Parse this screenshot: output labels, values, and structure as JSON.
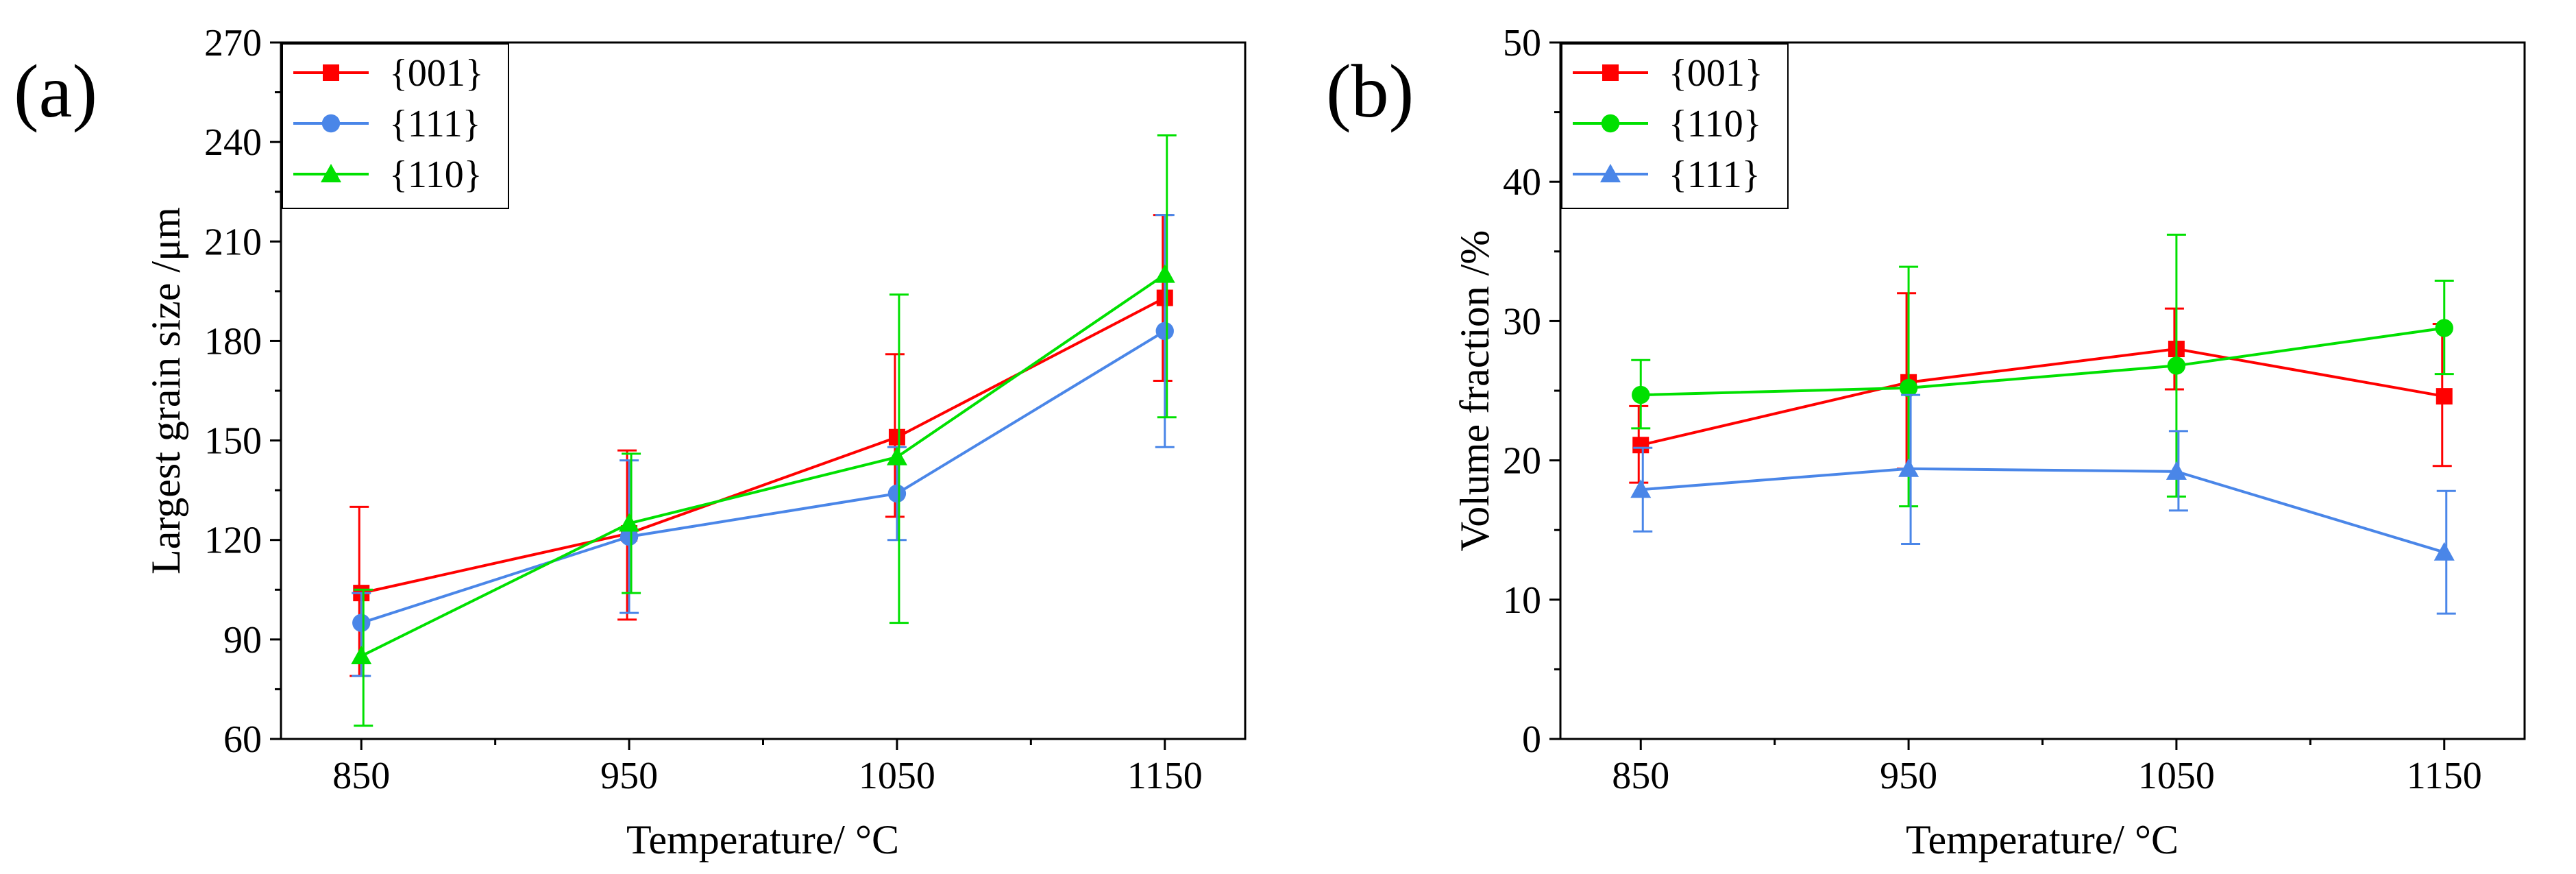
{
  "chart_data": [
    {
      "panel": "(a)",
      "type": "line",
      "xlabel": "Temperature/ °C",
      "ylabel": "Largest grain size /μm",
      "x": [
        850,
        950,
        1050,
        1150
      ],
      "xticks": [
        850,
        950,
        1050,
        1150
      ],
      "xtick_labels": [
        "850",
        "950",
        "1050",
        "1150"
      ],
      "xlim": [
        820,
        1180
      ],
      "ylim": [
        60,
        270
      ],
      "yticks": [
        60,
        90,
        120,
        150,
        180,
        210,
        240,
        270
      ],
      "ytick_labels": [
        "60",
        "90",
        "120",
        "150",
        "180",
        "210",
        "240",
        "270"
      ],
      "legend_position": "top-left",
      "series": [
        {
          "name": "{001}",
          "color": "#ff0000",
          "marker": "square",
          "values": [
            104,
            122,
            151,
            193
          ],
          "error_low": [
            79,
            96,
            127,
            168
          ],
          "error_high": [
            130,
            147,
            176,
            218
          ]
        },
        {
          "name": "{111}",
          "color": "#4a86e8",
          "marker": "circle",
          "values": [
            95,
            121,
            134,
            183
          ],
          "error_low": [
            79,
            98,
            120,
            148
          ],
          "error_high": [
            104,
            144,
            148,
            218
          ]
        },
        {
          "name": "{110}",
          "color": "#00e000",
          "marker": "triangle",
          "values": [
            85,
            125,
            145,
            200
          ],
          "error_low": [
            64,
            104,
            95,
            157
          ],
          "error_high": [
            105,
            146,
            194,
            242
          ]
        }
      ]
    },
    {
      "panel": "(b)",
      "type": "line",
      "xlabel": "Temperature/ °C",
      "ylabel": "Volume fraction /%",
      "x": [
        850,
        950,
        1050,
        1150
      ],
      "xticks": [
        850,
        950,
        1050,
        1150
      ],
      "xtick_labels": [
        "850",
        "950",
        "1050",
        "1150"
      ],
      "xlim": [
        820,
        1180
      ],
      "ylim": [
        0,
        50
      ],
      "yticks": [
        0,
        10,
        20,
        30,
        40,
        50
      ],
      "ytick_labels": [
        "0",
        "10",
        "20",
        "30",
        "40",
        "50"
      ],
      "legend_position": "top-left",
      "series": [
        {
          "name": "{001}",
          "color": "#ff0000",
          "marker": "square",
          "values": [
            21.1,
            25.6,
            28.0,
            24.6
          ],
          "error_low": [
            18.4,
            19.4,
            25.1,
            19.6
          ],
          "error_high": [
            23.9,
            32.0,
            30.9,
            29.8
          ]
        },
        {
          "name": "{110}",
          "color": "#00e000",
          "marker": "circle",
          "values": [
            24.7,
            25.2,
            26.8,
            29.5
          ],
          "error_low": [
            22.3,
            16.7,
            17.4,
            26.2
          ],
          "error_high": [
            27.2,
            33.9,
            36.2,
            32.9
          ]
        },
        {
          "name": "{111}",
          "color": "#4a86e8",
          "marker": "triangle",
          "values": [
            17.9,
            19.4,
            19.2,
            13.4
          ],
          "error_low": [
            14.9,
            14.0,
            16.4,
            9.0
          ],
          "error_high": [
            20.9,
            24.7,
            22.1,
            17.8
          ]
        }
      ]
    }
  ]
}
